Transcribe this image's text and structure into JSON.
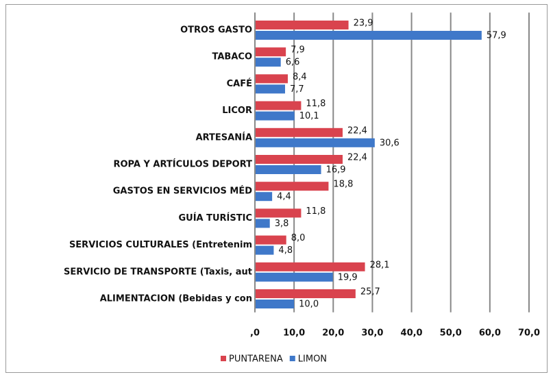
{
  "chart_data": {
    "type": "hbar",
    "categories": [
      "OTROS GASTO",
      "TABACO",
      "CAFÉ",
      "LICOR",
      "ARTESANÍA",
      "ROPA Y ARTÍCULOS DEPORT",
      "GASTOS EN SERVICIOS MÉD",
      "GUÍA TURÍSTIC",
      "SERVICIOS CULTURALES (Entretenim",
      "SERVICIO DE TRANSPORTE (Taxis, aut",
      "ALIMENTACION (Bebidas y con"
    ],
    "series": [
      {
        "name": "PUNTARENA",
        "color": "#d9434e",
        "values": [
          23.9,
          7.9,
          8.4,
          11.8,
          22.4,
          22.4,
          18.8,
          11.8,
          8.0,
          28.1,
          25.7
        ],
        "value_labels": [
          "23,9",
          "7,9",
          "8,4",
          "11,8",
          "22,4",
          "22,4",
          "18,8",
          "11,8",
          "8,0",
          "28,1",
          "25,7"
        ]
      },
      {
        "name": "LIMON",
        "color": "#3f78c9",
        "values": [
          57.9,
          6.6,
          7.7,
          10.1,
          30.6,
          16.9,
          4.4,
          3.8,
          4.8,
          19.9,
          10.0
        ],
        "value_labels": [
          "57,9",
          "6,6",
          "7,7",
          "10,1",
          "30,6",
          "16,9",
          "4,4",
          "3,8",
          "4,8",
          "19,9",
          "10,0"
        ]
      }
    ],
    "xlim": [
      0,
      70
    ],
    "xticks": [
      {
        "value": 0,
        "label": ",0"
      },
      {
        "value": 10,
        "label": "10,0"
      },
      {
        "value": 20,
        "label": "20,0"
      },
      {
        "value": 30,
        "label": "30,0"
      },
      {
        "value": 40,
        "label": "40,0"
      },
      {
        "value": 50,
        "label": "50,0"
      },
      {
        "value": 60,
        "label": "60,0"
      },
      {
        "value": 70,
        "label": "70,0"
      }
    ],
    "grid": true,
    "legend": "bottom"
  }
}
